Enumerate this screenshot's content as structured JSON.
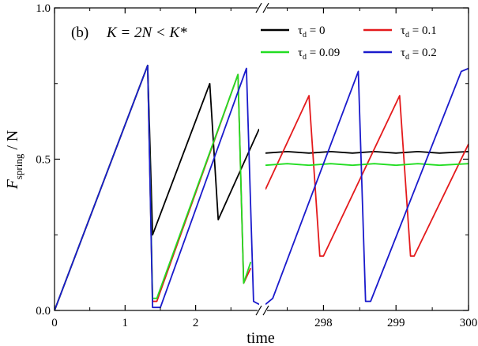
{
  "chart_data": {
    "type": "line",
    "panel_label": "(b)",
    "condition_text": "K = 2N < K*",
    "xlabel": "time",
    "ylabel_main": "F",
    "ylabel_sub": "spring",
    "ylabel_tail": " / N",
    "ylim": [
      0,
      1
    ],
    "y_ticks": [
      "0.0",
      "0.5",
      "1.0"
    ],
    "x_ticks_left": [
      "0",
      "1",
      "2"
    ],
    "x_ticks_right": [
      "298",
      "299",
      "300"
    ],
    "xlim_left": [
      0,
      2.9
    ],
    "xlim_right": [
      297.2,
      300
    ],
    "broken_x_axis": true,
    "legend_position": "top-right",
    "legend": [
      {
        "symbol": "τ",
        "sub": "d",
        "value": " = 0",
        "color": "#000000"
      },
      {
        "symbol": "τ",
        "sub": "d",
        "value": " = 0.1",
        "color": "#e41a1c"
      },
      {
        "symbol": "τ",
        "sub": "d",
        "value": " = 0.09",
        "color": "#22dd22"
      },
      {
        "symbol": "τ",
        "sub": "d",
        "value": " = 0.2",
        "color": "#1a1acc"
      }
    ],
    "series": [
      {
        "name": "τd = 0",
        "color": "#000000",
        "left": [
          [
            0,
            0
          ],
          [
            1.32,
            0.81
          ],
          [
            1.39,
            0.25
          ],
          [
            2.2,
            0.75
          ],
          [
            2.32,
            0.3
          ],
          [
            2.9,
            0.6
          ]
        ],
        "right": [
          [
            297.2,
            0.52
          ],
          [
            297.5,
            0.525
          ],
          [
            297.8,
            0.52
          ],
          [
            298.1,
            0.525
          ],
          [
            298.4,
            0.52
          ],
          [
            298.7,
            0.525
          ],
          [
            299.0,
            0.52
          ],
          [
            299.3,
            0.525
          ],
          [
            299.6,
            0.52
          ],
          [
            300,
            0.525
          ]
        ]
      },
      {
        "name": "τd = 0.1",
        "color": "#e41a1c",
        "left": [
          [
            0,
            0
          ],
          [
            1.32,
            0.81
          ],
          [
            1.39,
            0.03
          ],
          [
            1.45,
            0.03
          ],
          [
            2.6,
            0.78
          ],
          [
            2.68,
            0.09
          ],
          [
            2.78,
            0.14
          ]
        ],
        "right": [
          [
            297.2,
            0.4
          ],
          [
            297.8,
            0.71
          ],
          [
            297.95,
            0.18
          ],
          [
            298.0,
            0.18
          ],
          [
            299.05,
            0.71
          ],
          [
            299.2,
            0.18
          ],
          [
            299.25,
            0.18
          ],
          [
            300,
            0.55
          ]
        ]
      },
      {
        "name": "τd = 0.09",
        "color": "#22dd22",
        "left": [
          [
            0,
            0
          ],
          [
            1.32,
            0.81
          ],
          [
            1.39,
            0.04
          ],
          [
            1.45,
            0.04
          ],
          [
            2.6,
            0.78
          ],
          [
            2.68,
            0.09
          ],
          [
            2.78,
            0.16
          ]
        ],
        "right": [
          [
            297.2,
            0.48
          ],
          [
            297.5,
            0.485
          ],
          [
            297.8,
            0.48
          ],
          [
            298.1,
            0.485
          ],
          [
            298.4,
            0.48
          ],
          [
            298.7,
            0.485
          ],
          [
            299.0,
            0.48
          ],
          [
            299.3,
            0.485
          ],
          [
            299.6,
            0.48
          ],
          [
            300,
            0.485
          ]
        ]
      },
      {
        "name": "τd = 0.2",
        "color": "#1a1acc",
        "left": [
          [
            0,
            0
          ],
          [
            1.32,
            0.81
          ],
          [
            1.39,
            0.01
          ],
          [
            1.5,
            0.01
          ],
          [
            2.72,
            0.8
          ],
          [
            2.82,
            0.03
          ],
          [
            2.9,
            0.02
          ]
        ],
        "right": [
          [
            297.2,
            0.02
          ],
          [
            297.3,
            0.04
          ],
          [
            298.48,
            0.79
          ],
          [
            298.58,
            0.03
          ],
          [
            298.65,
            0.03
          ],
          [
            299.9,
            0.79
          ],
          [
            300,
            0.8
          ]
        ]
      }
    ]
  }
}
